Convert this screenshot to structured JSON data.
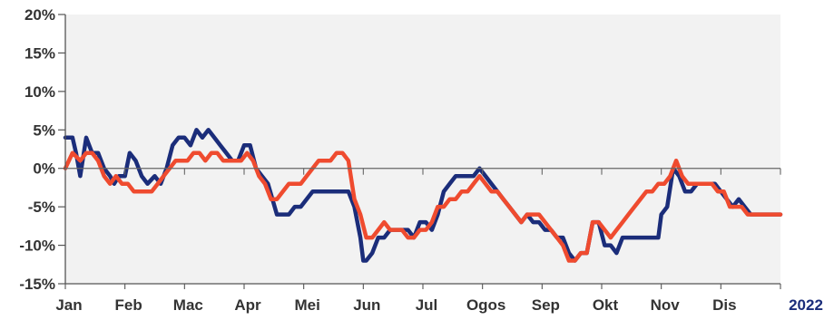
{
  "chart_data": {
    "type": "line",
    "title": "",
    "xlabel": "",
    "ylabel": "",
    "year_label": "2022",
    "months": [
      "Jan",
      "Feb",
      "Mac",
      "Apr",
      "Mei",
      "Jun",
      "Jul",
      "Ogos",
      "Sep",
      "Okt",
      "Nov",
      "Dis"
    ],
    "yticks": [
      "20%",
      "15%",
      "10%",
      "5%",
      "0%",
      "-5%",
      "-10%",
      "-15%"
    ],
    "ytick_values": [
      20,
      15,
      10,
      5,
      0,
      -5,
      -10,
      -15
    ],
    "ylim": [
      -15,
      20
    ],
    "xlim": [
      0,
      12
    ],
    "grid": false,
    "plot_background": "#f2f2f2",
    "series": [
      {
        "color": "#1b2d7a",
        "points": [
          [
            0.0,
            4
          ],
          [
            0.12,
            4
          ],
          [
            0.18,
            2
          ],
          [
            0.25,
            -1
          ],
          [
            0.35,
            4
          ],
          [
            0.45,
            2
          ],
          [
            0.55,
            2
          ],
          [
            0.65,
            0
          ],
          [
            0.75,
            -1
          ],
          [
            0.82,
            -2
          ],
          [
            0.9,
            -1
          ],
          [
            1.0,
            -1
          ],
          [
            1.08,
            2
          ],
          [
            1.18,
            1
          ],
          [
            1.28,
            -1
          ],
          [
            1.38,
            -2
          ],
          [
            1.5,
            -1
          ],
          [
            1.6,
            -2
          ],
          [
            1.7,
            0
          ],
          [
            1.8,
            3
          ],
          [
            1.9,
            4
          ],
          [
            2.0,
            4
          ],
          [
            2.1,
            3
          ],
          [
            2.2,
            5
          ],
          [
            2.3,
            4
          ],
          [
            2.4,
            5
          ],
          [
            2.5,
            4
          ],
          [
            2.6,
            3
          ],
          [
            2.7,
            2
          ],
          [
            2.8,
            1
          ],
          [
            2.9,
            1
          ],
          [
            3.0,
            3
          ],
          [
            3.1,
            3
          ],
          [
            3.2,
            0
          ],
          [
            3.3,
            -1
          ],
          [
            3.4,
            -2
          ],
          [
            3.55,
            -6
          ],
          [
            3.65,
            -6
          ],
          [
            3.75,
            -6
          ],
          [
            3.85,
            -5
          ],
          [
            3.95,
            -5
          ],
          [
            4.05,
            -4
          ],
          [
            4.15,
            -3
          ],
          [
            4.25,
            -3
          ],
          [
            4.35,
            -3
          ],
          [
            4.45,
            -3
          ],
          [
            4.55,
            -3
          ],
          [
            4.65,
            -3
          ],
          [
            4.75,
            -3
          ],
          [
            4.85,
            -5
          ],
          [
            4.95,
            -9
          ],
          [
            5.0,
            -12
          ],
          [
            5.05,
            -12
          ],
          [
            5.15,
            -11
          ],
          [
            5.25,
            -9
          ],
          [
            5.35,
            -9
          ],
          [
            5.45,
            -8
          ],
          [
            5.55,
            -8
          ],
          [
            5.65,
            -8
          ],
          [
            5.75,
            -8
          ],
          [
            5.85,
            -9
          ],
          [
            5.95,
            -7
          ],
          [
            6.05,
            -7
          ],
          [
            6.15,
            -8
          ],
          [
            6.25,
            -6
          ],
          [
            6.35,
            -3
          ],
          [
            6.45,
            -2
          ],
          [
            6.55,
            -1
          ],
          [
            6.65,
            -1
          ],
          [
            6.75,
            -1
          ],
          [
            6.85,
            -1
          ],
          [
            6.95,
            0
          ],
          [
            7.05,
            -1
          ],
          [
            7.15,
            -2
          ],
          [
            7.25,
            -3
          ],
          [
            7.35,
            -4
          ],
          [
            7.45,
            -5
          ],
          [
            7.55,
            -6
          ],
          [
            7.65,
            -7
          ],
          [
            7.75,
            -6
          ],
          [
            7.85,
            -7
          ],
          [
            7.95,
            -7
          ],
          [
            8.05,
            -8
          ],
          [
            8.15,
            -8
          ],
          [
            8.25,
            -9
          ],
          [
            8.35,
            -9
          ],
          [
            8.45,
            -11
          ],
          [
            8.55,
            -12
          ],
          [
            8.65,
            -11
          ],
          [
            8.75,
            -11
          ],
          [
            8.85,
            -7
          ],
          [
            8.95,
            -7
          ],
          [
            9.05,
            -10
          ],
          [
            9.15,
            -10
          ],
          [
            9.25,
            -11
          ],
          [
            9.35,
            -9
          ],
          [
            9.45,
            -9
          ],
          [
            9.55,
            -9
          ],
          [
            9.65,
            -9
          ],
          [
            9.75,
            -9
          ],
          [
            9.85,
            -9
          ],
          [
            9.95,
            -9
          ],
          [
            10.0,
            -6
          ],
          [
            10.1,
            -5
          ],
          [
            10.2,
            0
          ],
          [
            10.3,
            -1
          ],
          [
            10.4,
            -3
          ],
          [
            10.5,
            -3
          ],
          [
            10.6,
            -2
          ],
          [
            10.7,
            -2
          ],
          [
            10.8,
            -2
          ],
          [
            10.9,
            -2
          ],
          [
            11.0,
            -3
          ],
          [
            11.1,
            -4
          ],
          [
            11.2,
            -5
          ],
          [
            11.3,
            -4
          ],
          [
            11.4,
            -5
          ],
          [
            11.5,
            -6
          ],
          [
            11.6,
            -6
          ],
          [
            11.7,
            -6
          ],
          [
            11.8,
            -6
          ],
          [
            11.9,
            -6
          ],
          [
            12.0,
            -6
          ]
        ]
      },
      {
        "color": "#ef4b2f",
        "points": [
          [
            0.0,
            0
          ],
          [
            0.12,
            2
          ],
          [
            0.25,
            1
          ],
          [
            0.35,
            2
          ],
          [
            0.45,
            2
          ],
          [
            0.55,
            1
          ],
          [
            0.65,
            -1
          ],
          [
            0.75,
            -2
          ],
          [
            0.85,
            -1
          ],
          [
            0.95,
            -2
          ],
          [
            1.05,
            -2
          ],
          [
            1.15,
            -3
          ],
          [
            1.25,
            -3
          ],
          [
            1.35,
            -3
          ],
          [
            1.45,
            -3
          ],
          [
            1.55,
            -2
          ],
          [
            1.65,
            -1
          ],
          [
            1.75,
            0
          ],
          [
            1.85,
            1
          ],
          [
            1.95,
            1
          ],
          [
            2.05,
            1
          ],
          [
            2.15,
            2
          ],
          [
            2.25,
            2
          ],
          [
            2.35,
            1
          ],
          [
            2.45,
            2
          ],
          [
            2.55,
            2
          ],
          [
            2.65,
            1
          ],
          [
            2.75,
            1
          ],
          [
            2.85,
            1
          ],
          [
            2.95,
            1
          ],
          [
            3.05,
            2
          ],
          [
            3.15,
            1
          ],
          [
            3.25,
            -1
          ],
          [
            3.35,
            -2
          ],
          [
            3.45,
            -4
          ],
          [
            3.55,
            -4
          ],
          [
            3.65,
            -3
          ],
          [
            3.75,
            -2
          ],
          [
            3.85,
            -2
          ],
          [
            3.95,
            -2
          ],
          [
            4.05,
            -1
          ],
          [
            4.15,
            0
          ],
          [
            4.25,
            1
          ],
          [
            4.35,
            1
          ],
          [
            4.45,
            1
          ],
          [
            4.55,
            2
          ],
          [
            4.65,
            2
          ],
          [
            4.75,
            1
          ],
          [
            4.85,
            -4
          ],
          [
            4.95,
            -6
          ],
          [
            5.05,
            -9
          ],
          [
            5.15,
            -9
          ],
          [
            5.25,
            -8
          ],
          [
            5.35,
            -7
          ],
          [
            5.45,
            -8
          ],
          [
            5.55,
            -8
          ],
          [
            5.65,
            -8
          ],
          [
            5.75,
            -9
          ],
          [
            5.85,
            -9
          ],
          [
            5.95,
            -8
          ],
          [
            6.05,
            -8
          ],
          [
            6.15,
            -7
          ],
          [
            6.25,
            -5
          ],
          [
            6.35,
            -5
          ],
          [
            6.45,
            -4
          ],
          [
            6.55,
            -4
          ],
          [
            6.65,
            -3
          ],
          [
            6.75,
            -3
          ],
          [
            6.85,
            -2
          ],
          [
            6.95,
            -1
          ],
          [
            7.05,
            -2
          ],
          [
            7.15,
            -3
          ],
          [
            7.25,
            -3
          ],
          [
            7.35,
            -4
          ],
          [
            7.45,
            -5
          ],
          [
            7.55,
            -6
          ],
          [
            7.65,
            -7
          ],
          [
            7.75,
            -6
          ],
          [
            7.85,
            -6
          ],
          [
            7.95,
            -6
          ],
          [
            8.05,
            -7
          ],
          [
            8.15,
            -8
          ],
          [
            8.25,
            -9
          ],
          [
            8.35,
            -10
          ],
          [
            8.45,
            -12
          ],
          [
            8.55,
            -12
          ],
          [
            8.65,
            -11
          ],
          [
            8.75,
            -11
          ],
          [
            8.85,
            -7
          ],
          [
            8.95,
            -7
          ],
          [
            9.05,
            -8
          ],
          [
            9.15,
            -9
          ],
          [
            9.25,
            -8
          ],
          [
            9.35,
            -7
          ],
          [
            9.45,
            -6
          ],
          [
            9.55,
            -5
          ],
          [
            9.65,
            -4
          ],
          [
            9.75,
            -3
          ],
          [
            9.85,
            -3
          ],
          [
            9.95,
            -2
          ],
          [
            10.05,
            -2
          ],
          [
            10.15,
            -1
          ],
          [
            10.25,
            1
          ],
          [
            10.35,
            -1
          ],
          [
            10.45,
            -2
          ],
          [
            10.55,
            -2
          ],
          [
            10.65,
            -2
          ],
          [
            10.75,
            -2
          ],
          [
            10.85,
            -2
          ],
          [
            10.95,
            -3
          ],
          [
            11.05,
            -3
          ],
          [
            11.15,
            -5
          ],
          [
            11.25,
            -5
          ],
          [
            11.35,
            -5
          ],
          [
            11.45,
            -6
          ],
          [
            11.55,
            -6
          ],
          [
            11.65,
            -6
          ],
          [
            11.75,
            -6
          ],
          [
            11.85,
            -6
          ],
          [
            11.95,
            -6
          ],
          [
            12.0,
            -6
          ]
        ]
      }
    ]
  }
}
